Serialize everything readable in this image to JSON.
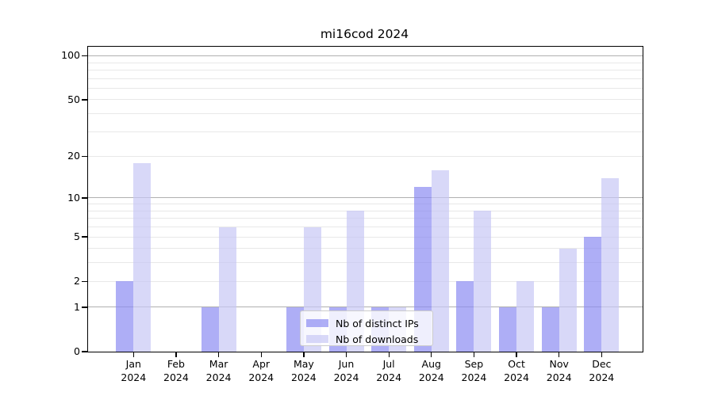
{
  "title": "mi16cod 2024",
  "chart_data": {
    "type": "bar",
    "title": "mi16cod 2024",
    "categories": [
      "Jan 2024",
      "Feb 2024",
      "Mar 2024",
      "Apr 2024",
      "May 2024",
      "Jun 2024",
      "Jul 2024",
      "Aug 2024",
      "Sep 2024",
      "Oct 2024",
      "Nov 2024",
      "Dec 2024"
    ],
    "series": [
      {
        "name": "Nb of distinct IPs",
        "color": "#8c8cf2",
        "alpha": 0.7,
        "values": [
          2,
          0,
          1,
          0,
          1,
          1,
          1,
          12,
          2,
          1,
          1,
          5
        ]
      },
      {
        "name": "Nb of downloads",
        "color": "#c8c8f5",
        "alpha": 0.7,
        "values": [
          18,
          0,
          6,
          0,
          6,
          8,
          1,
          16,
          8,
          2,
          4,
          14
        ]
      }
    ],
    "xlabel": "",
    "ylabel": "",
    "y_scale": "log1p",
    "y_ticks": [
      0,
      1,
      2,
      5,
      10,
      20,
      50,
      100
    ],
    "ylim": [
      0,
      115.5
    ],
    "grid_major": [
      1,
      10,
      100
    ],
    "grid_minor": [
      2,
      3,
      4,
      5,
      6,
      7,
      8,
      9,
      20,
      30,
      40,
      50,
      60,
      70,
      80,
      90
    ],
    "legend_position": "lower center"
  },
  "colors": {
    "background": "#ffffff",
    "axis": "#000000",
    "text": "#000000",
    "grid_major": "#b0b0b0",
    "grid_minor": "#e8e8e8",
    "legend_border": "#cccccc",
    "legend_bg": "#ffffff"
  }
}
